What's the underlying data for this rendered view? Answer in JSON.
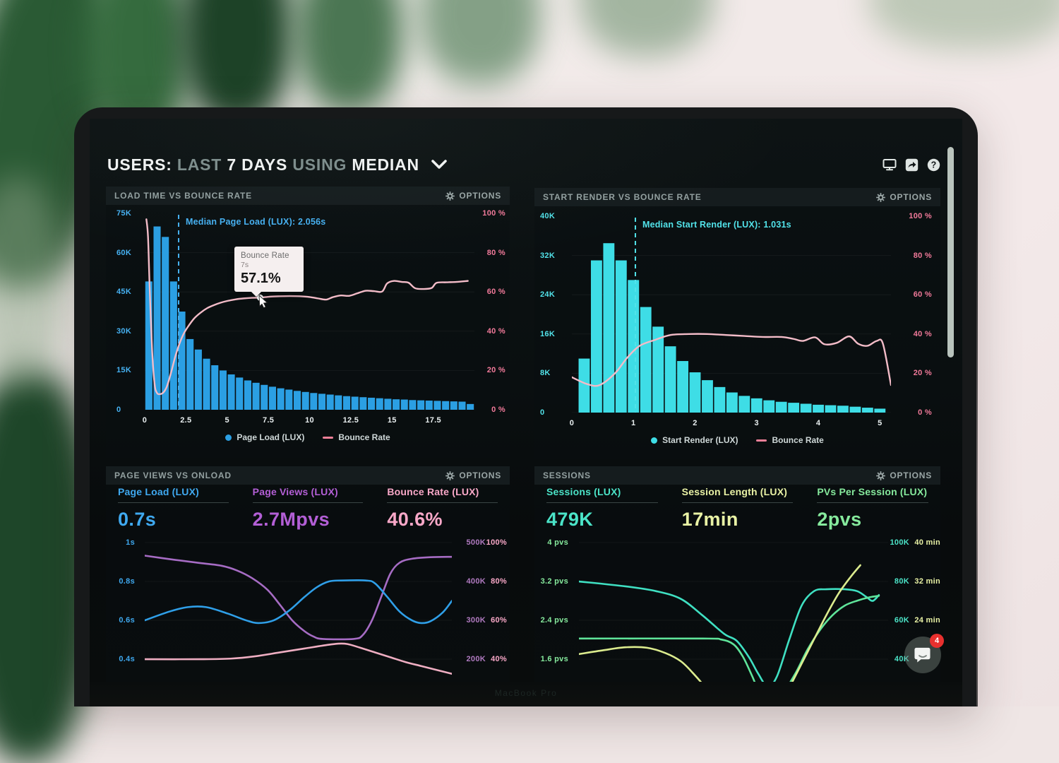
{
  "ui": {
    "options_label": "OPTIONS"
  },
  "header": {
    "users": "USERS:",
    "range": "LAST",
    "days": "7 DAYS",
    "using": "USING",
    "agg": "MEDIAN",
    "icons": [
      "display-icon",
      "share-icon",
      "help-icon"
    ],
    "help_glyph": "?"
  },
  "chat": {
    "badge": "4"
  },
  "laptop": {
    "brand_label": "MacBook Pro"
  },
  "chart_data": [
    {
      "id": "load-time",
      "type": "histogram_line",
      "title": "LOAD TIME VS BOUNCE RATE",
      "left_axis": {
        "labels": [
          "75K",
          "60K",
          "45K",
          "30K",
          "15K",
          "0"
        ],
        "max": 75,
        "color": "#46b1f2"
      },
      "right_axis": {
        "labels": [
          "100 %",
          "80 %",
          "60 %",
          "40 %",
          "20 %",
          "0 %"
        ],
        "max": 100,
        "color": "#f2higher"
      },
      "x_axis": {
        "labels": [
          "0",
          "2.5",
          "5",
          "7.5",
          "10",
          "12.5",
          "15",
          "17.5"
        ],
        "values": [
          0,
          2.5,
          5,
          7.5,
          10,
          12.5,
          15,
          17.5
        ],
        "max": 20,
        "color": "#e9eff0"
      },
      "bars": {
        "color": "#2b9fe3",
        "bin_start": 0,
        "bin_width": 0.5,
        "values": [
          49,
          70,
          66,
          49,
          37.5,
          27,
          23,
          19.5,
          17,
          15,
          13.5,
          12.3,
          11.2,
          10.3,
          9.5,
          8.8,
          8.2,
          7.7,
          7.2,
          6.8,
          6.4,
          6.1,
          5.8,
          5.5,
          5.2,
          5,
          4.8,
          4.6,
          4.4,
          4.2,
          4,
          3.9,
          3.7,
          3.6,
          3.5,
          3.4,
          3.3,
          3.2,
          3.1,
          2.2
        ]
      },
      "line": {
        "color": "#f3bcc8",
        "points": [
          [
            0.1,
            97
          ],
          [
            0.2,
            88
          ],
          [
            0.3,
            62
          ],
          [
            0.45,
            30
          ],
          [
            0.6,
            13
          ],
          [
            0.75,
            8.5
          ],
          [
            0.95,
            8
          ],
          [
            1.15,
            9
          ],
          [
            1.35,
            12
          ],
          [
            1.6,
            19
          ],
          [
            1.85,
            27
          ],
          [
            2.1,
            33.5
          ],
          [
            2.35,
            38.5
          ],
          [
            2.6,
            42
          ],
          [
            3,
            46.5
          ],
          [
            3.4,
            49.5
          ],
          [
            3.8,
            51.8
          ],
          [
            4.2,
            53.3
          ],
          [
            4.6,
            54.5
          ],
          [
            5,
            55.4
          ],
          [
            5.5,
            56.2
          ],
          [
            6,
            56.7
          ],
          [
            6.5,
            57
          ],
          [
            7,
            57.1
          ],
          [
            7.6,
            57.6
          ],
          [
            8.2,
            57.8
          ],
          [
            8.8,
            57.9
          ],
          [
            9.4,
            57.8
          ],
          [
            10,
            57.4
          ],
          [
            10.5,
            56.7
          ],
          [
            11,
            56.1
          ],
          [
            11.4,
            57.3
          ],
          [
            11.9,
            58.2
          ],
          [
            12.4,
            58
          ],
          [
            12.9,
            59.3
          ],
          [
            13.4,
            60.6
          ],
          [
            13.9,
            60.4
          ],
          [
            14.4,
            60.2
          ],
          [
            14.7,
            64.3
          ],
          [
            15.1,
            65.6
          ],
          [
            15.6,
            65.1
          ],
          [
            16,
            64.7
          ],
          [
            16.4,
            61.9
          ],
          [
            16.9,
            61.5
          ],
          [
            17.4,
            62
          ],
          [
            17.7,
            64.6
          ],
          [
            18.3,
            64.9
          ],
          [
            18.9,
            65.1
          ],
          [
            19.6,
            65.6
          ]
        ]
      },
      "median": {
        "x": 2.056,
        "label": "Median Page Load (LUX): 2.056s",
        "color": "#46b1f2"
      },
      "legend": [
        {
          "swatch": "dot",
          "color": "#2b9fe3",
          "label": "Page Load (LUX)"
        },
        {
          "swatch": "line",
          "color": "#f08098",
          "label": "Bounce Rate"
        }
      ],
      "tooltip": {
        "title": "Bounce Rate",
        "subtitle": "7s",
        "value": "57.1%",
        "x": 7,
        "y": 57.1
      }
    },
    {
      "id": "start-render",
      "type": "histogram_line",
      "title": "START RENDER VS BOUNCE RATE",
      "left_axis": {
        "labels": [
          "40K",
          "32K",
          "24K",
          "16K",
          "8K",
          "0"
        ],
        "max": 40,
        "color": "#52e3ea"
      },
      "right_axis": {
        "labels": [
          "100 %",
          "80 %",
          "60 %",
          "40 %",
          "20 %",
          "0 %"
        ],
        "max": 100,
        "color": "#f2higher"
      },
      "x_axis": {
        "labels": [
          "0",
          "1",
          "2",
          "3",
          "4",
          "5"
        ],
        "values": [
          0,
          1,
          2,
          3,
          4,
          5
        ],
        "max": 5.18,
        "color": "#e9eff0"
      },
      "bars": {
        "color": "#3edde6",
        "bin_start": 0.1,
        "bin_width": 0.2,
        "values": [
          11,
          31,
          34.5,
          31,
          27,
          21.5,
          17.5,
          13.5,
          10.5,
          8.2,
          6.6,
          5.2,
          4.1,
          3.4,
          2.9,
          2.5,
          2.2,
          2,
          1.8,
          1.6,
          1.5,
          1.4,
          1.2,
          1,
          0.8
        ]
      },
      "line": {
        "color": "#f3bcc8",
        "points": [
          [
            0,
            18
          ],
          [
            0.25,
            14.5
          ],
          [
            0.45,
            14
          ],
          [
            0.7,
            20
          ],
          [
            0.9,
            28
          ],
          [
            1.1,
            34
          ],
          [
            1.35,
            37
          ],
          [
            1.6,
            39.5
          ],
          [
            1.9,
            40
          ],
          [
            2.2,
            40
          ],
          [
            2.5,
            39.5
          ],
          [
            2.8,
            39
          ],
          [
            3.1,
            38.5
          ],
          [
            3.4,
            38.5
          ],
          [
            3.6,
            37.5
          ],
          [
            3.75,
            36.5
          ],
          [
            3.95,
            38.3
          ],
          [
            4.1,
            34.8
          ],
          [
            4.3,
            35.5
          ],
          [
            4.5,
            38.8
          ],
          [
            4.65,
            35
          ],
          [
            4.8,
            34
          ],
          [
            4.95,
            36.5
          ],
          [
            5.05,
            35
          ],
          [
            5.18,
            14
          ]
        ]
      },
      "median": {
        "x": 1.031,
        "label": "Median Start Render (LUX): 1.031s",
        "color": "#52e3ea"
      },
      "legend": [
        {
          "swatch": "dot",
          "color": "#3edde6",
          "label": "Start Render (LUX)"
        },
        {
          "swatch": "line",
          "color": "#f08098",
          "label": "Bounce Rate"
        }
      ]
    },
    {
      "id": "pageviews",
      "type": "multiline",
      "title": "PAGE VIEWS VS ONLOAD",
      "metrics": [
        {
          "label": "Page Load (LUX)",
          "value": "0.7s",
          "color": "#3fa9f0"
        },
        {
          "label": "Page Views (LUX)",
          "value": "2.7Mpvs",
          "color": "#b35fd6"
        },
        {
          "label": "Bounce Rate (LUX)",
          "value": "40.6%",
          "color": "#f9a8c8"
        }
      ],
      "left_ticks": {
        "labels": [
          "1s",
          "0.8s",
          "0.6s",
          "0.4s"
        ],
        "color": "#3fa9f0"
      },
      "right_ticks": [
        {
          "labels": [
            "500K",
            "400K",
            "300K",
            "200K"
          ],
          "color": "#b07ac0"
        },
        {
          "labels": [
            "100%",
            "80%",
            "60%",
            "40%"
          ],
          "color": "#f9a8c8"
        }
      ],
      "series": [
        {
          "name": "page_views",
          "color": "#a66cc4",
          "axis_range": [
            142,
            505
          ],
          "points": [
            [
              0,
              466
            ],
            [
              10,
              455
            ],
            [
              18,
              447
            ],
            [
              25,
              440
            ],
            [
              30,
              428
            ],
            [
              35,
              408
            ],
            [
              40,
              378
            ],
            [
              44,
              340
            ],
            [
              48,
              300
            ],
            [
              52,
              272
            ],
            [
              55,
              258
            ],
            [
              58,
              252
            ],
            [
              68,
              252
            ],
            [
              71,
              262
            ],
            [
              74,
              300
            ],
            [
              77,
              360
            ],
            [
              80,
              420
            ],
            [
              83,
              448
            ],
            [
              87,
              458
            ],
            [
              93,
              462
            ],
            [
              100,
              463
            ]
          ]
        },
        {
          "name": "page_load",
          "color": "#2f9fe8",
          "axis_range": [
            0.284,
            1.011
          ],
          "points": [
            [
              0,
              0.6
            ],
            [
              8,
              0.645
            ],
            [
              14,
              0.668
            ],
            [
              20,
              0.668
            ],
            [
              27,
              0.635
            ],
            [
              33,
              0.6
            ],
            [
              37,
              0.586
            ],
            [
              42,
              0.6
            ],
            [
              47,
              0.65
            ],
            [
              52,
              0.72
            ],
            [
              56,
              0.77
            ],
            [
              60,
              0.8
            ],
            [
              64,
              0.805
            ],
            [
              72,
              0.805
            ],
            [
              75,
              0.79
            ],
            [
              79,
              0.72
            ],
            [
              83,
              0.645
            ],
            [
              87,
              0.6
            ],
            [
              90,
              0.586
            ],
            [
              93,
              0.595
            ],
            [
              97,
              0.64
            ],
            [
              100,
              0.7
            ]
          ]
        },
        {
          "name": "bounce_rate",
          "color": "#efaec2",
          "axis_range": [
            28.4,
            101.1
          ],
          "points": [
            [
              0,
              40
            ],
            [
              18,
              40
            ],
            [
              28,
              40.3
            ],
            [
              36,
              41.5
            ],
            [
              44,
              43.5
            ],
            [
              52,
              45.5
            ],
            [
              58,
              47
            ],
            [
              63,
              48
            ],
            [
              66,
              47.8
            ],
            [
              70,
              46
            ],
            [
              75,
              43.5
            ],
            [
              80,
              41
            ],
            [
              85,
              38.5
            ],
            [
              90,
              36.5
            ],
            [
              95,
              34.5
            ],
            [
              100,
              32.5
            ]
          ]
        }
      ]
    },
    {
      "id": "sessions",
      "type": "multiline",
      "title": "SESSIONS",
      "metrics": [
        {
          "label": "Sessions (LUX)",
          "value": "479K",
          "color": "#4be4c8"
        },
        {
          "label": "Session Length (LUX)",
          "value": "17min",
          "color": "#e9f2a5"
        },
        {
          "label": "PVs Per Session (LUX)",
          "value": "2pvs",
          "color": "#86ea9d"
        }
      ],
      "left_ticks": {
        "labels": [
          "4 pvs",
          "3.2 pvs",
          "2.4 pvs",
          "1.6 pvs"
        ],
        "color": "#86ea9d"
      },
      "right_ticks": [
        {
          "labels": [
            "100K",
            "80K",
            "60K",
            "40K"
          ],
          "color": "#4be4c8"
        },
        {
          "labels": [
            "40 min",
            "32 min",
            "24 min",
            ""
          ],
          "color": "#e9f2a5"
        }
      ],
      "series": [
        {
          "name": "sessions",
          "color": "#3fe0c2",
          "axis_range": [
            28.4,
            101.1
          ],
          "points": [
            [
              0,
              80
            ],
            [
              15,
              77.5
            ],
            [
              25,
              75
            ],
            [
              33,
              71
            ],
            [
              40,
              62.5
            ],
            [
              47,
              53
            ],
            [
              51,
              49.5
            ],
            [
              55,
              41
            ],
            [
              58,
              32.5
            ],
            [
              61,
              26
            ],
            [
              64,
              31
            ],
            [
              68,
              50
            ],
            [
              72,
              67.5
            ],
            [
              76,
              75
            ],
            [
              80,
              76
            ],
            [
              86,
              76
            ],
            [
              90,
              75
            ],
            [
              93,
              72
            ],
            [
              95,
              70
            ],
            [
              97,
              73
            ]
          ]
        },
        {
          "name": "pvs_per_session",
          "color": "#5fe49a",
          "axis_range": [
            1.13,
            4.04
          ],
          "points": [
            [
              0,
              2.02
            ],
            [
              40,
              2.02
            ],
            [
              46,
              2
            ],
            [
              50,
              1.9
            ],
            [
              53,
              1.65
            ],
            [
              56,
              1.25
            ],
            [
              58,
              0.95
            ],
            [
              60,
              0.75
            ],
            [
              63,
              0.72
            ],
            [
              66,
              0.9
            ],
            [
              70,
              1.3
            ],
            [
              74,
              1.8
            ],
            [
              78,
              2.2
            ],
            [
              82,
              2.5
            ],
            [
              86,
              2.7
            ],
            [
              90,
              2.8
            ],
            [
              94,
              2.87
            ],
            [
              97,
              2.9
            ]
          ]
        },
        {
          "name": "session_length",
          "color": "#dcec8e",
          "axis_range": [
            11.3,
            40.4
          ],
          "points": [
            [
              0,
              17
            ],
            [
              8,
              17.8
            ],
            [
              15,
              18.4
            ],
            [
              22,
              18.3
            ],
            [
              28,
              17.2
            ],
            [
              33,
              15.5
            ],
            [
              37,
              13
            ],
            [
              41,
              10
            ],
            [
              44,
              7
            ],
            [
              47,
              4
            ],
            [
              50,
              0
            ],
            [
              55,
              -2
            ],
            [
              58,
              -2
            ],
            [
              61,
              1
            ],
            [
              64,
              5
            ],
            [
              68,
              10
            ],
            [
              72,
              15
            ],
            [
              76,
              20
            ],
            [
              80,
              25
            ],
            [
              84,
              29.5
            ],
            [
              88,
              33
            ],
            [
              91,
              35.3
            ]
          ]
        }
      ]
    }
  ],
  "axis_pink": "#f0higher"
}
